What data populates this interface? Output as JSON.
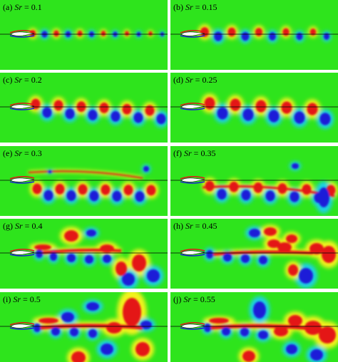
{
  "panels": [
    {
      "letter": "(a)",
      "symbol": "Sr",
      "value": "= 0.1"
    },
    {
      "letter": "(b)",
      "symbol": "Sr",
      "value": "= 0.15"
    },
    {
      "letter": "(c)",
      "symbol": "Sr",
      "value": "= 0.2"
    },
    {
      "letter": "(d)",
      "symbol": "Sr",
      "value": "= 0.25"
    },
    {
      "letter": "(e)",
      "symbol": "Sr",
      "value": "= 0.3"
    },
    {
      "letter": "(f)",
      "symbol": "Sr",
      "value": "= 0.35"
    },
    {
      "letter": "(g)",
      "symbol": "Sr",
      "value": "= 0.4"
    },
    {
      "letter": "(h)",
      "symbol": "Sr",
      "value": "= 0.45"
    },
    {
      "letter": "(i)",
      "symbol": "Sr",
      "value": "= 0.5"
    },
    {
      "letter": "(j)",
      "symbol": "Sr",
      "value": "= 0.55"
    }
  ]
}
